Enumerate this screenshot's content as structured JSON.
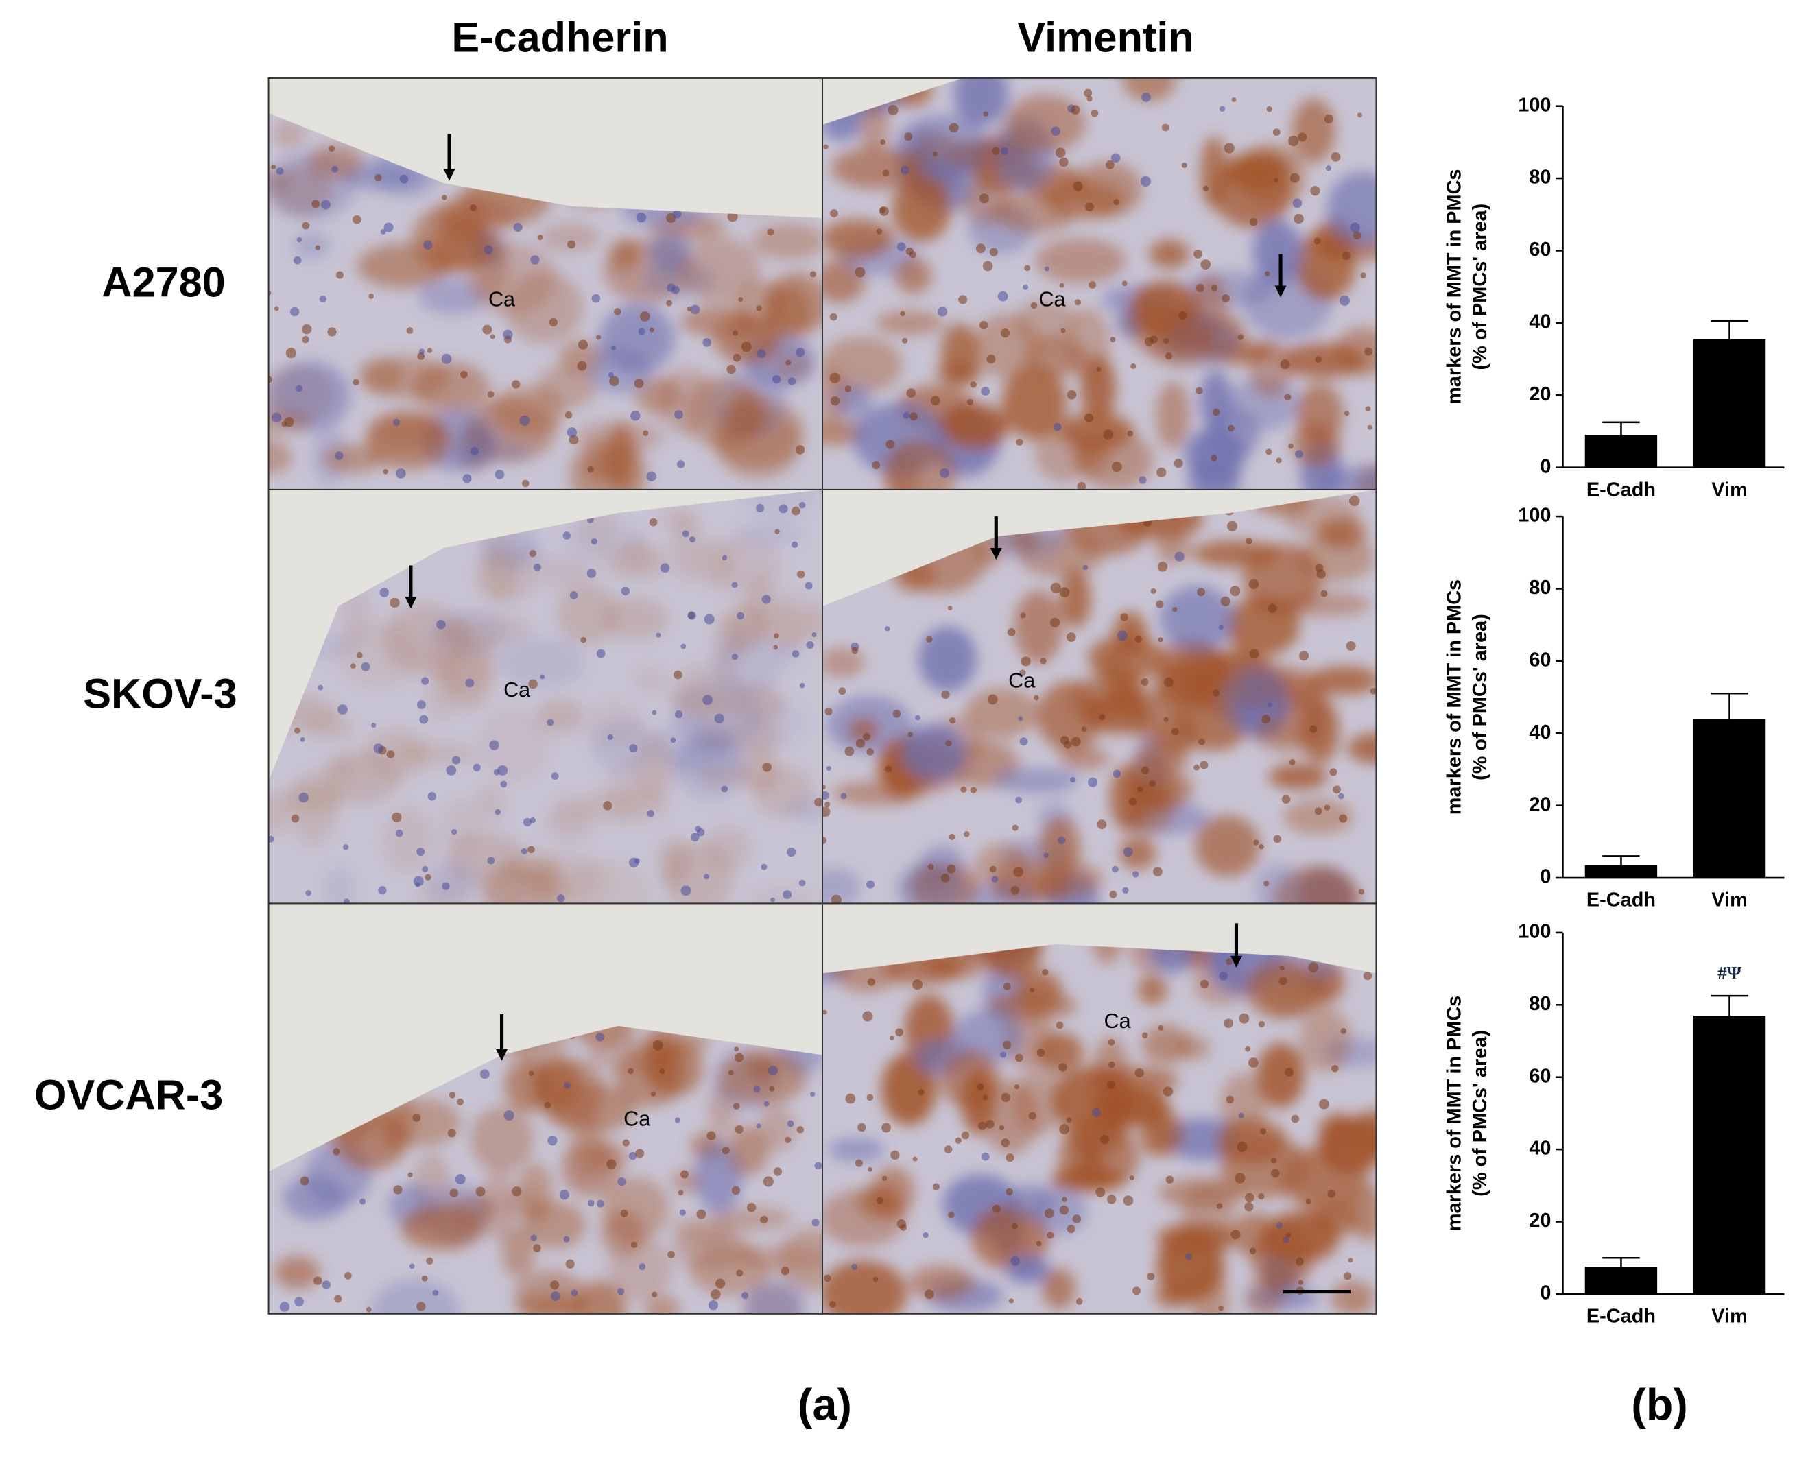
{
  "figure": {
    "column_titles": [
      "E-cadherin",
      "Vimentin"
    ],
    "row_titles": [
      "A2780",
      "SKOV-3",
      "OVCAR-3"
    ],
    "panel_labels": [
      "(a)",
      "(b)"
    ],
    "micrograph_labels": [
      "Ca",
      "Ca",
      "Ca",
      "Ca",
      "Ca",
      "Ca"
    ]
  },
  "chart_data": [
    {
      "type": "bar",
      "categories": [
        "E-Cadh",
        "Vim"
      ],
      "values": [
        9,
        35.5
      ],
      "errors": [
        3.5,
        5
      ],
      "color": "#000000",
      "ylabel": [
        "markers of MMT in PMCs",
        "(% of PMCs' area)"
      ],
      "ylim": [
        0,
        100
      ],
      "yticks": [
        0,
        20,
        40,
        60,
        80,
        100
      ]
    },
    {
      "type": "bar",
      "categories": [
        "E-Cadh",
        "Vim"
      ],
      "values": [
        3.5,
        44
      ],
      "errors": [
        2.5,
        7
      ],
      "color": "#000000",
      "ylabel": [
        "markers of MMT in PMCs",
        "(% of PMCs' area)"
      ],
      "ylim": [
        0,
        100
      ],
      "yticks": [
        0,
        20,
        40,
        60,
        80,
        100
      ]
    },
    {
      "type": "bar",
      "categories": [
        "E-Cadh",
        "Vim"
      ],
      "values": [
        7.5,
        77
      ],
      "errors": [
        2.5,
        5.5
      ],
      "color": "#000000",
      "ylabel": [
        "markers of MMT in PMCs",
        "(% of PMCs' area)"
      ],
      "ylim": [
        0,
        100
      ],
      "yticks": [
        0,
        20,
        40,
        60,
        80,
        100
      ],
      "annotation": "#Ψ"
    }
  ]
}
